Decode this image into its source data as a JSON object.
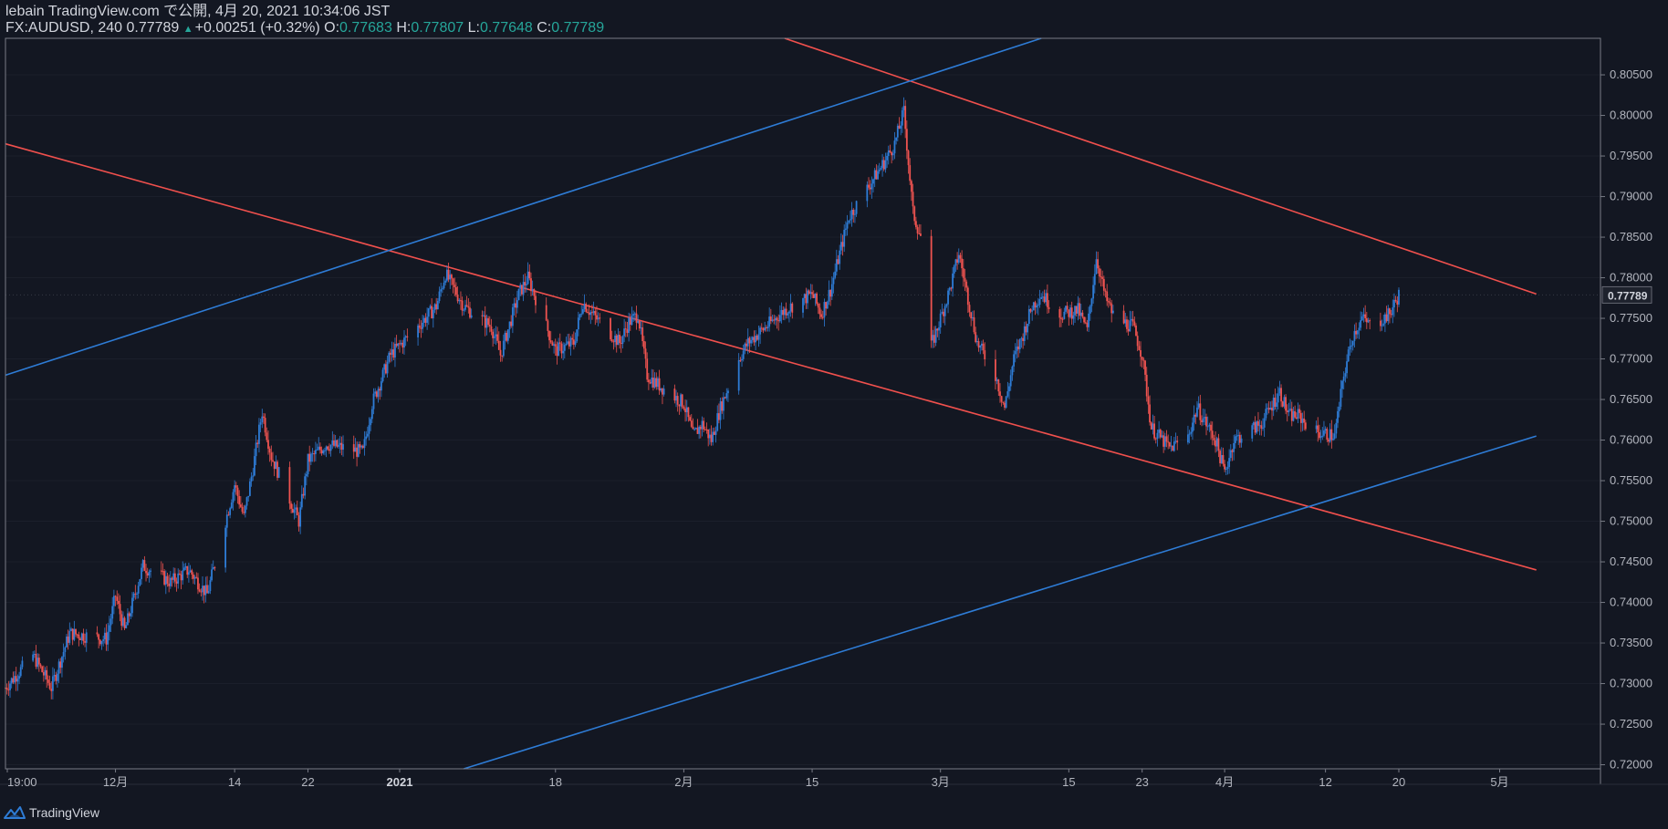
{
  "header": {
    "line1": "lebain TradingView.com で公開, 4月 20, 2021 10:34:06 JST",
    "symbol_label": "FX:AUDUSD, 240 0.77789",
    "change_label": "+0.00251 (+0.32%)",
    "open_key": "O:",
    "open_val": "0.77683",
    "high_key": "H:",
    "high_val": "0.77807",
    "low_key": "L:",
    "low_val": "0.77648",
    "close_key": "C:",
    "close_val": "0.77789"
  },
  "footer": {
    "brand": "TradingView"
  },
  "colors": {
    "background": "#131722",
    "up": "#2e7cd6",
    "down": "#ef5350",
    "trend_red": "#f0504d",
    "trend_blue": "#2e7cd6",
    "text": "#d1d4dc"
  },
  "chart_data": {
    "type": "candlestick",
    "symbol": "FX:AUDUSD",
    "interval": "240",
    "ylim": [
      0.7195,
      0.8095
    ],
    "y_ticks": [
      "0.80500",
      "0.80000",
      "0.79500",
      "0.79000",
      "0.78500",
      "0.78000",
      "0.77500",
      "0.77000",
      "0.76500",
      "0.76000",
      "0.75500",
      "0.75000",
      "0.74500",
      "0.74000",
      "0.73500",
      "0.73000",
      "0.72500",
      "0.72000"
    ],
    "x_ticks": [
      {
        "label": "19:00",
        "date": "2020-11-19"
      },
      {
        "label": "12月",
        "date": "2020-12-01"
      },
      {
        "label": "14",
        "date": "2020-12-14"
      },
      {
        "label": "22",
        "date": "2020-12-22"
      },
      {
        "label": "2021",
        "date": "2021-01-01"
      },
      {
        "label": "18",
        "date": "2021-01-18"
      },
      {
        "label": "2月",
        "date": "2021-02-01"
      },
      {
        "label": "15",
        "date": "2021-02-15"
      },
      {
        "label": "3月",
        "date": "2021-03-01"
      },
      {
        "label": "15",
        "date": "2021-03-15"
      },
      {
        "label": "23",
        "date": "2021-03-23"
      },
      {
        "label": "4月",
        "date": "2021-04-01"
      },
      {
        "label": "12",
        "date": "2021-04-12"
      },
      {
        "label": "20",
        "date": "2021-04-20"
      },
      {
        "label": "5月",
        "date": "2021-05-01"
      }
    ],
    "last_price": "0.77789",
    "price_path": [
      [
        "2020-11-19",
        0.7295
      ],
      [
        "2020-11-22",
        0.7335
      ],
      [
        "2020-11-24",
        0.7295
      ],
      [
        "2020-11-26",
        0.7362
      ],
      [
        "2020-11-30",
        0.7355
      ],
      [
        "2020-12-01",
        0.7408
      ],
      [
        "2020-12-02",
        0.7365
      ],
      [
        "2020-12-04",
        0.7445
      ],
      [
        "2020-12-07",
        0.7425
      ],
      [
        "2020-12-09",
        0.744
      ],
      [
        "2020-12-11",
        0.741
      ],
      [
        "2020-12-14",
        0.7545
      ],
      [
        "2020-12-15",
        0.7505
      ],
      [
        "2020-12-16",
        0.7565
      ],
      [
        "2020-12-17",
        0.7635
      ],
      [
        "2020-12-18",
        0.758
      ],
      [
        "2020-12-21",
        0.75
      ],
      [
        "2020-12-22",
        0.7575
      ],
      [
        "2020-12-24",
        0.7595
      ],
      [
        "2020-12-28",
        0.7585
      ],
      [
        "2020-12-29",
        0.7645
      ],
      [
        "2020-12-31",
        0.7705
      ],
      [
        "2021-01-03",
        0.774
      ],
      [
        "2021-01-05",
        0.7765
      ],
      [
        "2021-01-06",
        0.7805
      ],
      [
        "2021-01-08",
        0.7765
      ],
      [
        "2021-01-11",
        0.774
      ],
      [
        "2021-01-12",
        0.7705
      ],
      [
        "2021-01-14",
        0.778
      ],
      [
        "2021-01-15",
        0.78
      ],
      [
        "2021-01-18",
        0.771
      ],
      [
        "2021-01-20",
        0.772
      ],
      [
        "2021-01-21",
        0.777
      ],
      [
        "2021-01-22",
        0.7755
      ],
      [
        "2021-01-25",
        0.772
      ],
      [
        "2021-01-26",
        0.7745
      ],
      [
        "2021-01-27",
        0.7755
      ],
      [
        "2021-01-28",
        0.768
      ],
      [
        "2021-01-29",
        0.767
      ],
      [
        "2021-02-01",
        0.7645
      ],
      [
        "2021-02-02",
        0.7605
      ],
      [
        "2021-02-03",
        0.762
      ],
      [
        "2021-02-04",
        0.76
      ],
      [
        "2021-02-05",
        0.764
      ],
      [
        "2021-02-07",
        0.77
      ],
      [
        "2021-02-08",
        0.772
      ],
      [
        "2021-02-10",
        0.774
      ],
      [
        "2021-02-12",
        0.776
      ],
      [
        "2021-02-15",
        0.778
      ],
      [
        "2021-02-16",
        0.7755
      ],
      [
        "2021-02-17",
        0.7785
      ],
      [
        "2021-02-18",
        0.783
      ],
      [
        "2021-02-19",
        0.7875
      ],
      [
        "2021-02-21",
        0.791
      ],
      [
        "2021-02-23",
        0.7945
      ],
      [
        "2021-02-24",
        0.7965
      ],
      [
        "2021-02-25",
        0.8005
      ],
      [
        "2021-02-26",
        0.788
      ],
      [
        "2021-02-27",
        0.7845
      ],
      [
        "2021-02-28",
        0.7715
      ],
      [
        "2021-03-02",
        0.7785
      ],
      [
        "2021-03-03",
        0.783
      ],
      [
        "2021-03-04",
        0.7775
      ],
      [
        "2021-03-05",
        0.772
      ],
      [
        "2021-03-07",
        0.768
      ],
      [
        "2021-03-08",
        0.764
      ],
      [
        "2021-03-09",
        0.77
      ],
      [
        "2021-03-10",
        0.773
      ],
      [
        "2021-03-11",
        0.7765
      ],
      [
        "2021-03-12",
        0.778
      ],
      [
        "2021-03-14",
        0.7755
      ],
      [
        "2021-03-16",
        0.776
      ],
      [
        "2021-03-17",
        0.7735
      ],
      [
        "2021-03-18",
        0.7825
      ],
      [
        "2021-03-19",
        0.7775
      ],
      [
        "2021-03-20",
        0.775
      ],
      [
        "2021-03-22",
        0.774
      ],
      [
        "2021-03-23",
        0.7705
      ],
      [
        "2021-03-24",
        0.7615
      ],
      [
        "2021-03-26",
        0.759
      ],
      [
        "2021-03-28",
        0.7605
      ],
      [
        "2021-03-29",
        0.764
      ],
      [
        "2021-03-31",
        0.76
      ],
      [
        "2021-04-01",
        0.756
      ],
      [
        "2021-04-02",
        0.76
      ],
      [
        "2021-04-05",
        0.762
      ],
      [
        "2021-04-06",
        0.764
      ],
      [
        "2021-04-07",
        0.766
      ],
      [
        "2021-04-08",
        0.763
      ],
      [
        "2021-04-09",
        0.763
      ],
      [
        "2021-04-11",
        0.761
      ],
      [
        "2021-04-13",
        0.7605
      ],
      [
        "2021-04-14",
        0.768
      ],
      [
        "2021-04-15",
        0.773
      ],
      [
        "2021-04-16",
        0.775
      ],
      [
        "2021-04-17",
        0.774
      ],
      [
        "2021-04-19",
        0.7755
      ],
      [
        "2021-04-20",
        0.7779
      ]
    ],
    "trend_lines": [
      {
        "color": "red",
        "from": [
          "2020-11-19",
          0.7965
        ],
        "to": [
          "2021-05-05",
          0.744
        ]
      },
      {
        "color": "red",
        "from": [
          "2021-02-12",
          0.8095
        ],
        "to": [
          "2021-05-05",
          0.778
        ]
      },
      {
        "color": "blue",
        "from": [
          "2020-11-19",
          0.768
        ],
        "to": [
          "2021-03-12",
          0.8095
        ]
      },
      {
        "color": "blue",
        "from": [
          "2021-01-08",
          0.7195
        ],
        "to": [
          "2021-05-05",
          0.7605
        ]
      }
    ]
  }
}
